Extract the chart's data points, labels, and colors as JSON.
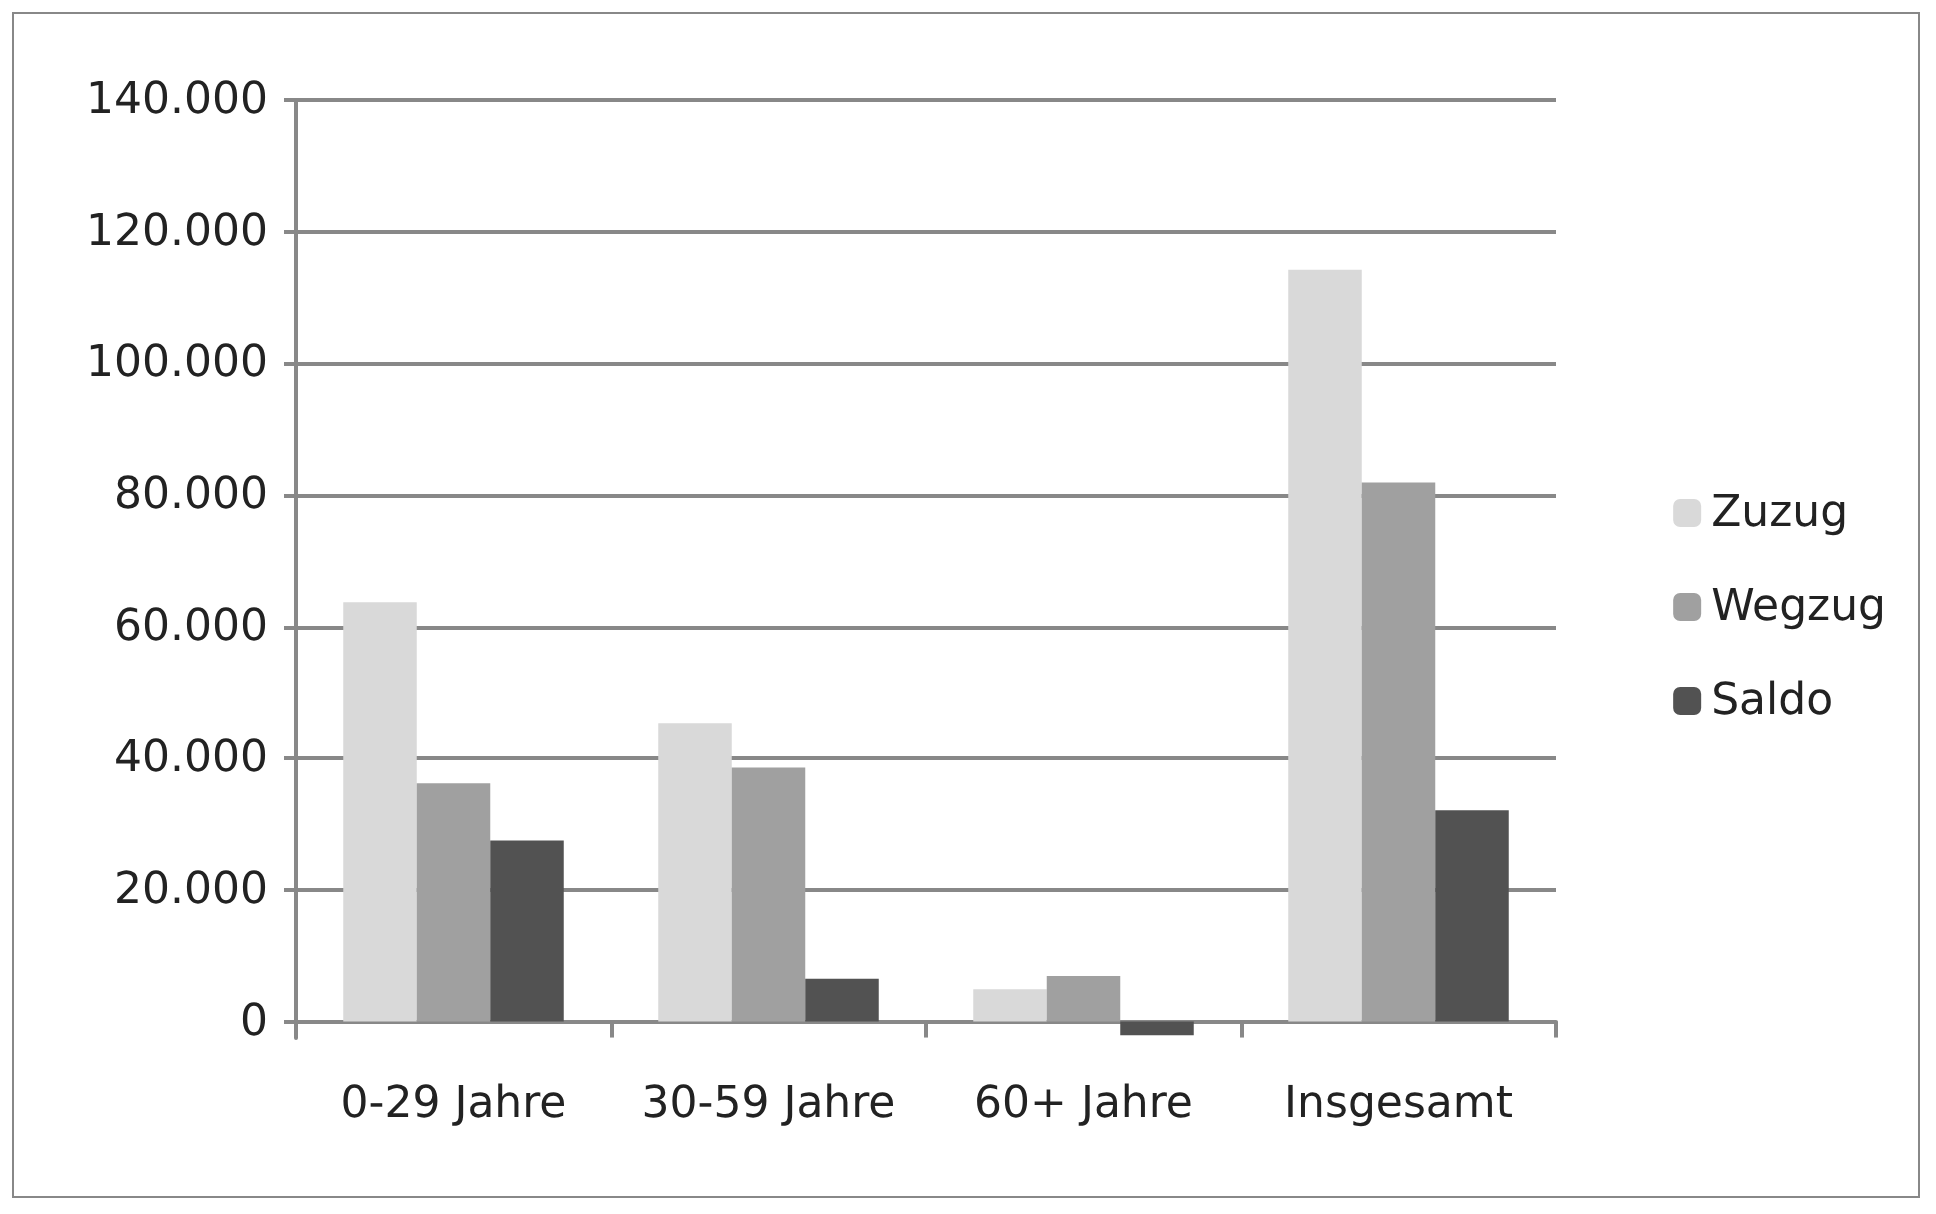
{
  "chart_data": {
    "type": "bar",
    "categories": [
      "0-29 Jahre",
      "30-59 Jahre",
      "60+ Jahre",
      "Insgesamt"
    ],
    "series": [
      {
        "name": "Zuzug",
        "color": "#d9d9d9",
        "values": [
          63700,
          45300,
          4900,
          114200
        ]
      },
      {
        "name": "Wegzug",
        "color": "#a0a0a0",
        "values": [
          36200,
          38600,
          6900,
          81900
        ]
      },
      {
        "name": "Saldo",
        "color": "#525252",
        "values": [
          27500,
          6500,
          -2100,
          32100
        ]
      }
    ],
    "ylim": [
      -2500,
      140000
    ],
    "yticks": [
      {
        "value": 0,
        "label": "0"
      },
      {
        "value": 20000,
        "label": "20.000"
      },
      {
        "value": 40000,
        "label": "40.000"
      },
      {
        "value": 60000,
        "label": "60.000"
      },
      {
        "value": 80000,
        "label": "80.000"
      },
      {
        "value": 100000,
        "label": "100.000"
      },
      {
        "value": 120000,
        "label": "120.000"
      },
      {
        "value": 140000,
        "label": "140.000"
      }
    ],
    "grid": "y",
    "legend": "right"
  }
}
